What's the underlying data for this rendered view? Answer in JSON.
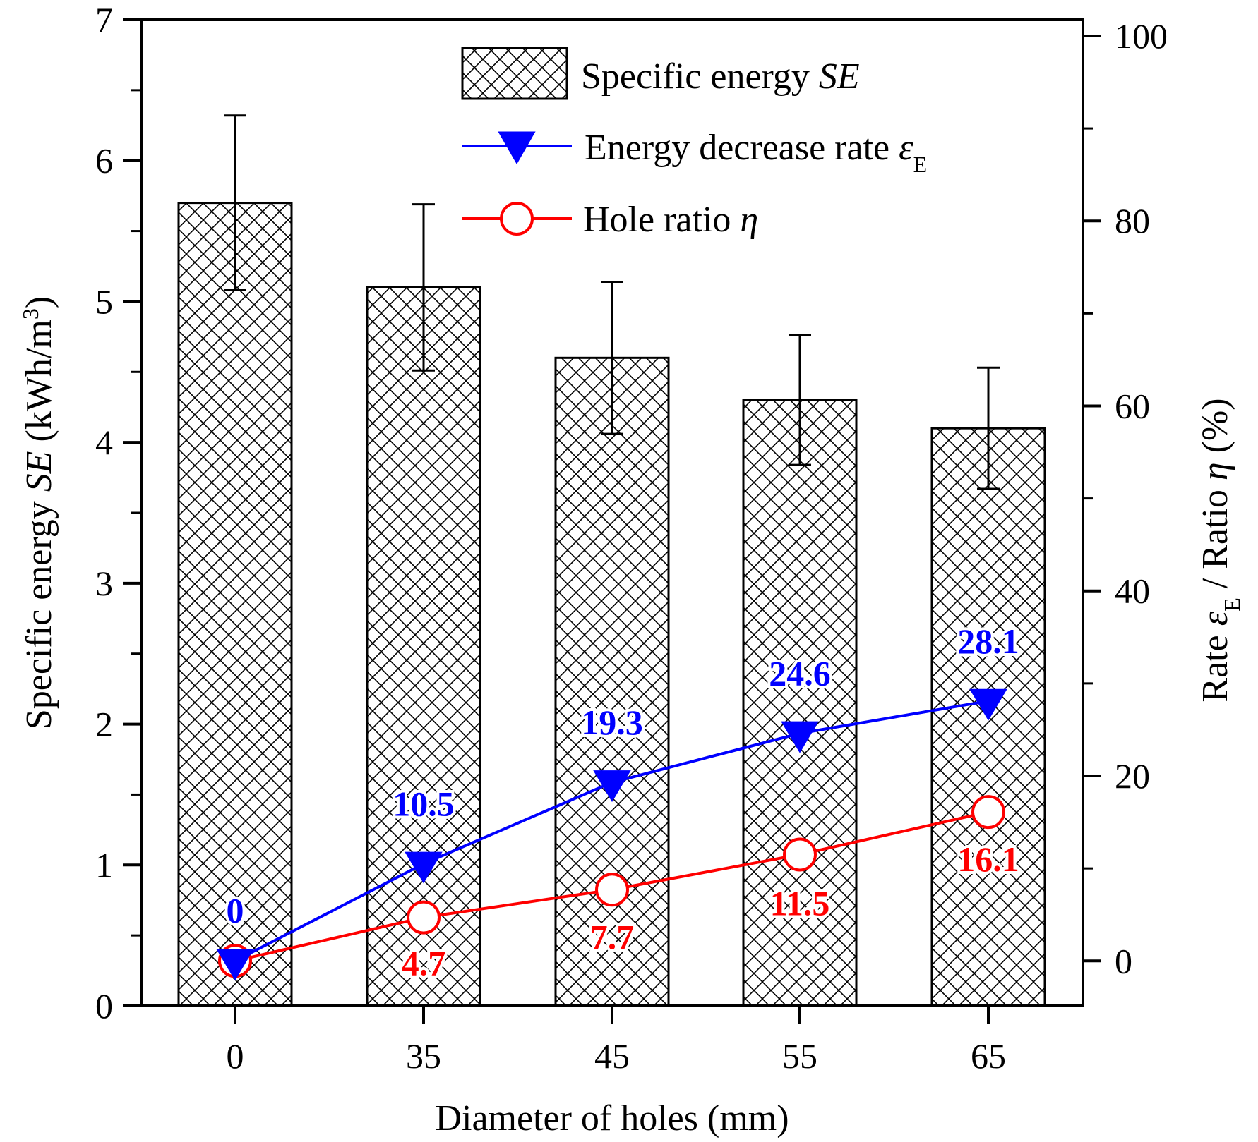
{
  "chart_data": {
    "type": "bar",
    "categories": [
      "0",
      "35",
      "45",
      "55",
      "65"
    ],
    "xlabel": "Diameter of holes (mm)",
    "left_axis": {
      "label_main": "Specific energy ",
      "label_italic": "SE",
      "label_unit": " (kWh/m",
      "label_sup": "3",
      "label_close": ")",
      "ylim": [
        0,
        7
      ],
      "ticks": [
        "0",
        "1",
        "2",
        "3",
        "4",
        "5",
        "6",
        "7"
      ]
    },
    "right_axis": {
      "label_rate": "Rate ",
      "label_eps": "ε",
      "label_sub": "E",
      "label_mid": " / Ratio ",
      "label_eta": "η",
      "label_unit": " (%)",
      "ylim": [
        -4.86,
        101.75
      ],
      "ticks": [
        "0",
        "20",
        "40",
        "60",
        "80",
        "100"
      ]
    },
    "series": [
      {
        "name": "Specific energy SE",
        "legend_main": "Specific energy ",
        "legend_italic": "SE",
        "kind": "bar",
        "axis": "left",
        "values": [
          5.7,
          5.1,
          4.6,
          4.3,
          4.1
        ],
        "error": [
          0.62,
          0.59,
          0.54,
          0.46,
          0.43
        ],
        "color": "#000000"
      },
      {
        "name": "Energy decrease rate εE",
        "legend_main": "Energy decrease rate ",
        "legend_italic": "ε",
        "legend_sub": "E",
        "kind": "line",
        "marker": "triangle-down",
        "axis": "right",
        "values": [
          0,
          10.5,
          19.3,
          24.6,
          28.1
        ],
        "labels": [
          "0",
          "10.5",
          "19.3",
          "24.6",
          "28.1"
        ],
        "color": "#0000ff"
      },
      {
        "name": "Hole ratio η",
        "legend_main": "Hole ratio ",
        "legend_italic": "η",
        "kind": "line",
        "marker": "circle-open",
        "axis": "right",
        "values": [
          0,
          4.7,
          7.7,
          11.5,
          16.1
        ],
        "labels": [
          "",
          "4.7",
          "7.7",
          "11.5",
          "16.1"
        ],
        "color": "#ff0000"
      }
    ],
    "legend_position": "top-right"
  }
}
